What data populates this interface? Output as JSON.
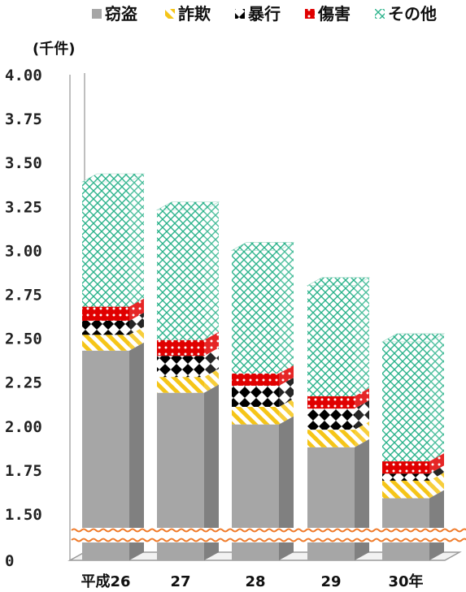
{
  "chart_data": {
    "type": "bar",
    "stacked": true,
    "three_d": true,
    "unit_label": "(千件)",
    "categories": [
      "平成26",
      "27",
      "28",
      "29",
      "30年"
    ],
    "y_ticks": [
      "4.00",
      "3.75",
      "3.50",
      "3.25",
      "3.00",
      "2.75",
      "2.50",
      "2.25",
      "2.00",
      "1.75",
      "1.50",
      "0"
    ],
    "ylim": [
      0,
      4.0
    ],
    "axis_break": true,
    "legend_position": "top",
    "series": [
      {
        "name": "窃盗",
        "color": "#a6a6a6",
        "pattern": "solid",
        "values": [
          2.43,
          2.19,
          2.01,
          1.88,
          1.59
        ]
      },
      {
        "name": "詐欺",
        "color": "#f5c518",
        "pattern": "diagonal-stripes",
        "values": [
          0.09,
          0.09,
          0.1,
          0.1,
          0.1
        ]
      },
      {
        "name": "暴行",
        "color": "#000000",
        "pattern": "diamonds",
        "values": [
          0.08,
          0.12,
          0.12,
          0.12,
          0.04
        ]
      },
      {
        "name": "傷害",
        "color": "#e00000",
        "pattern": "dots",
        "values": [
          0.08,
          0.09,
          0.07,
          0.07,
          0.07
        ]
      },
      {
        "name": "その他",
        "color": "#2bb38b",
        "pattern": "crosshatch",
        "values": [
          0.71,
          0.74,
          0.7,
          0.63,
          0.68
        ]
      }
    ]
  }
}
